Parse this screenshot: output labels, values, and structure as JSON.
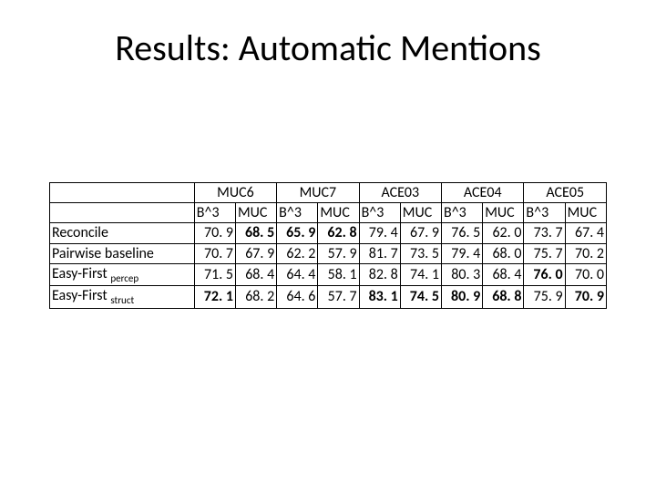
{
  "title": "Results: Automatic Mentions",
  "groups": [
    "MUC6",
    "MUC7",
    "ACE03",
    "ACE04",
    "ACE05"
  ],
  "subcols": [
    "B^3",
    "MUC"
  ],
  "rows": [
    {
      "label_main": "Reconcile",
      "label_sub": "",
      "vals": [
        "70. 9",
        "68. 5",
        "65. 9",
        "62. 8",
        "79. 4",
        "67. 9",
        "76. 5",
        "62. 0",
        "73. 7",
        "67. 4"
      ],
      "bold": [
        false,
        true,
        true,
        true,
        false,
        false,
        false,
        false,
        false,
        false
      ]
    },
    {
      "label_main": "Pairwise baseline",
      "label_sub": "",
      "vals": [
        "70. 7",
        "67. 9",
        "62. 2",
        "57. 9",
        "81. 7",
        "73. 5",
        "79. 4",
        "68. 0",
        "75. 7",
        "70. 2"
      ],
      "bold": [
        false,
        false,
        false,
        false,
        false,
        false,
        false,
        false,
        false,
        false
      ]
    },
    {
      "label_main": "Easy-First ",
      "label_sub": "percep",
      "vals": [
        "71. 5",
        "68. 4",
        "64. 4",
        "58. 1",
        "82. 8",
        "74. 1",
        "80. 3",
        "68. 4",
        "76. 0",
        "70. 0"
      ],
      "bold": [
        false,
        false,
        false,
        false,
        false,
        false,
        false,
        false,
        true,
        false
      ]
    },
    {
      "label_main": "Easy-First ",
      "label_sub": "struct",
      "vals": [
        "72. 1",
        "68. 2",
        "64. 6",
        "57. 7",
        "83. 1",
        "74. 5",
        "80. 9",
        "68. 8",
        "75. 9",
        "70. 9"
      ],
      "bold": [
        true,
        false,
        false,
        false,
        true,
        true,
        true,
        true,
        false,
        true
      ]
    }
  ]
}
